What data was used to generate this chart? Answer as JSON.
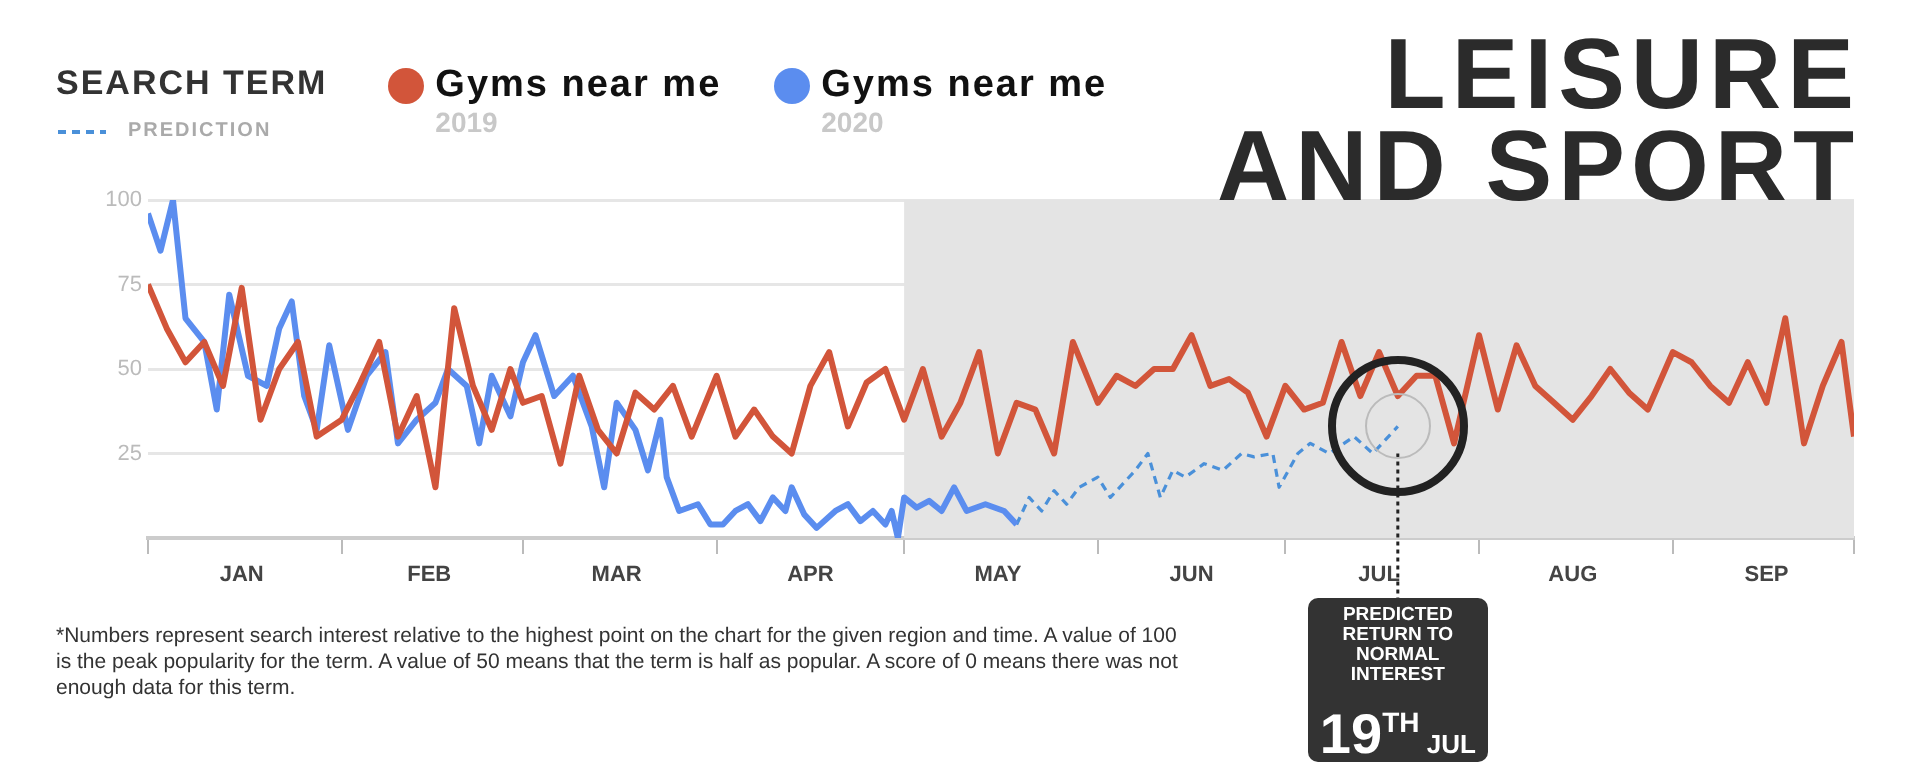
{
  "chart_data": {
    "type": "line",
    "title": "LEISURE AND SPORT",
    "legend_title": "SEARCH TERM",
    "legend": "top left",
    "marker": "none",
    "grid": "y",
    "ylim": [
      0,
      100
    ],
    "yticks": [
      25,
      50,
      75,
      100
    ],
    "xlim": [
      "--01-01",
      "--09-30"
    ],
    "xticks": [
      {
        "value": "--01-01",
        "label": null
      },
      {
        "value": "--01-16",
        "label": "JAN"
      },
      {
        "value": "--02-01",
        "label": null
      },
      {
        "value": "--02-15",
        "label": "FEB"
      },
      {
        "value": "--03-01",
        "label": null
      },
      {
        "value": "--03-16",
        "label": "MAR"
      },
      {
        "value": "--04-01",
        "label": null
      },
      {
        "value": "--04-16",
        "label": "APR"
      },
      {
        "value": "--05-01",
        "label": null
      },
      {
        "value": "--05-16",
        "label": "MAY"
      },
      {
        "value": "--06-01",
        "label": null
      },
      {
        "value": "--06-16",
        "label": "JUN"
      },
      {
        "value": "--07-01",
        "label": null
      },
      {
        "value": "--07-16",
        "label": "JUL"
      },
      {
        "value": "--08-01",
        "label": null
      },
      {
        "value": "--08-16",
        "label": "AUG"
      },
      {
        "value": "--09-01",
        "label": null
      },
      {
        "value": "--09-16",
        "label": "SEP"
      },
      {
        "value": "--09-30",
        "label": null
      }
    ],
    "series": [
      {
        "name": "Gyms near me 2019",
        "color": "#d2553a",
        "x": [
          "--01-01",
          "--01-04",
          "--01-07",
          "--01-10",
          "--01-13",
          "--01-16",
          "--01-19",
          "--01-22",
          "--01-25",
          "--01-28",
          "--02-01",
          "--02-04",
          "--02-07",
          "--02-10",
          "--02-13",
          "--02-16",
          "--02-19",
          "--02-22",
          "--02-25",
          "--02-28",
          "--03-01",
          "--03-04",
          "--03-07",
          "--03-10",
          "--03-13",
          "--03-16",
          "--03-19",
          "--03-22",
          "--03-25",
          "--03-28",
          "--04-01",
          "--04-04",
          "--04-07",
          "--04-10",
          "--04-13",
          "--04-16",
          "--04-19",
          "--04-22",
          "--04-25",
          "--04-28",
          "--05-01",
          "--05-04",
          "--05-07",
          "--05-10",
          "--05-13",
          "--05-16",
          "--05-19",
          "--05-22",
          "--05-25",
          "--05-28",
          "--06-01",
          "--06-04",
          "--06-07",
          "--06-10",
          "--06-13",
          "--06-16",
          "--06-19",
          "--06-22",
          "--06-25",
          "--06-28",
          "--07-01",
          "--07-04",
          "--07-07",
          "--07-10",
          "--07-13",
          "--07-16",
          "--07-19",
          "--07-22",
          "--07-25",
          "--07-28",
          "--08-01",
          "--08-04",
          "--08-07",
          "--08-10",
          "--08-13",
          "--08-16",
          "--08-19",
          "--08-22",
          "--08-25",
          "--08-28",
          "--09-01",
          "--09-04",
          "--09-07",
          "--09-10",
          "--09-13",
          "--09-16",
          "--09-19",
          "--09-22",
          "--09-25",
          "--09-28",
          "--09-30"
        ],
        "values": [
          75,
          62,
          52,
          58,
          45,
          74,
          35,
          50,
          58,
          30,
          35,
          46,
          58,
          30,
          42,
          15,
          68,
          45,
          32,
          50,
          40,
          42,
          22,
          48,
          32,
          25,
          43,
          38,
          45,
          30,
          48,
          30,
          38,
          30,
          25,
          45,
          55,
          33,
          46,
          50,
          35,
          50,
          30,
          40,
          55,
          25,
          40,
          38,
          25,
          58,
          40,
          48,
          45,
          50,
          50,
          60,
          45,
          47,
          43,
          30,
          45,
          38,
          40,
          58,
          42,
          55,
          42,
          48,
          48,
          28,
          60,
          38,
          57,
          45,
          40,
          35,
          42,
          50,
          43,
          38,
          55,
          52,
          45,
          40,
          52,
          40,
          65,
          28,
          45,
          58,
          30
        ]
      },
      {
        "name": "Gyms near me 2020",
        "color": "#5b8def",
        "x": [
          "--01-01",
          "--01-03",
          "--01-05",
          "--01-07",
          "--01-10",
          "--01-12",
          "--01-14",
          "--01-17",
          "--01-20",
          "--01-22",
          "--01-24",
          "--01-26",
          "--01-28",
          "--01-30",
          "--02-02",
          "--02-05",
          "--02-08",
          "--02-10",
          "--02-13",
          "--02-16",
          "--02-18",
          "--02-21",
          "--02-23",
          "--02-25",
          "--02-28",
          "--03-01",
          "--03-03",
          "--03-06",
          "--03-09",
          "--03-12",
          "--03-14",
          "--03-16",
          "--03-19",
          "--03-21",
          "--03-23",
          "--03-24",
          "--03-26",
          "--03-29",
          "--03-31",
          "--04-02",
          "--04-04",
          "--04-06",
          "--04-08",
          "--04-10",
          "--04-12",
          "--04-13",
          "--04-15",
          "--04-17",
          "--04-20",
          "--04-22",
          "--04-24",
          "--04-26",
          "--04-28",
          "--04-29",
          "--04-30",
          "--05-01",
          "--05-03",
          "--05-05",
          "--05-07",
          "--05-09",
          "--05-11",
          "--05-14",
          "--05-17",
          "--05-19"
        ],
        "values": [
          96,
          85,
          100,
          65,
          58,
          38,
          72,
          48,
          45,
          62,
          70,
          42,
          32,
          57,
          32,
          48,
          55,
          28,
          35,
          40,
          50,
          45,
          28,
          48,
          36,
          52,
          60,
          42,
          48,
          33,
          15,
          40,
          32,
          20,
          35,
          18,
          8,
          10,
          4,
          4,
          8,
          10,
          5,
          12,
          8,
          15,
          7,
          3,
          8,
          10,
          5,
          8,
          4,
          8,
          0,
          12,
          9,
          11,
          8,
          15,
          8,
          10,
          8,
          4
        ]
      },
      {
        "name": "PREDICTION",
        "color": "#4a90d9",
        "line_style": "dashed",
        "x": [
          "--05-19",
          "--05-21",
          "--05-23",
          "--05-25",
          "--05-27",
          "--05-29",
          "--06-01",
          "--06-03",
          "--06-07",
          "--06-09",
          "--06-11",
          "--06-13",
          "--06-15",
          "--06-18",
          "--06-21",
          "--06-24",
          "--06-26",
          "--06-29",
          "--06-30",
          "--07-03",
          "--07-05",
          "--07-08",
          "--07-12",
          "--07-15",
          "--07-19"
        ],
        "values": [
          4,
          12,
          8,
          14,
          10,
          15,
          18,
          12,
          20,
          25,
          12,
          20,
          18,
          22,
          20,
          25,
          24,
          25,
          15,
          25,
          28,
          25,
          30,
          25,
          33
        ]
      }
    ],
    "bands": [
      {
        "axis": "x",
        "from": "--05-01",
        "to": "--09-30",
        "color": "#e4e4e4"
      }
    ],
    "ref_lines": [
      {
        "axis": "x",
        "value": "--07-19",
        "label": "PREDICTED RETURN TO NORMAL INTEREST",
        "line_style": "dotted",
        "color": "#222222"
      }
    ],
    "annotations": [
      "19$^{TH}$ JUL",
      "*Numbers represent search interest relative to the highest point on the chart for the given region and time. A value of 100 is the peak popularity for the term. A value of 50 means that the term is half as popular. A score of 0 means there was not enough data for this term."
    ]
  }
}
